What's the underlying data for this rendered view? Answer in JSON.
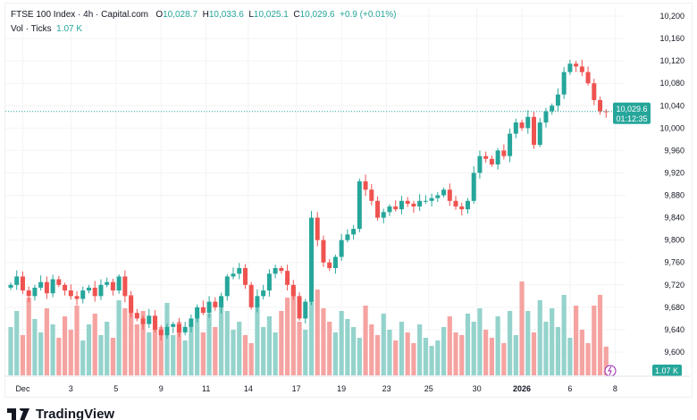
{
  "header": {
    "symbol": "FTSE 100 Index · 4h · Capital.com",
    "o_label": "O",
    "o": "10,028.7",
    "h_label": "H",
    "h": "10,033.6",
    "l_label": "L",
    "l": "10,025.1",
    "c_label": "C",
    "c": "10,029.6",
    "change": "+0.9 (+0.01%)",
    "vol_label": "Vol · Ticks",
    "vol": "1.07 K"
  },
  "price_tag": {
    "price": "10,029.6",
    "countdown": "01:12:35"
  },
  "volume_tag": "1.07 K",
  "brand": "TradingView",
  "colors": {
    "up": "#26a69a",
    "down": "#ef5350",
    "up_vol": "#94d3cc",
    "down_vol": "#f5a3a1"
  },
  "chart_data": {
    "type": "candlestick",
    "ylim": [
      9580,
      10220
    ],
    "y_ticks": [
      "10,200",
      "10,160",
      "10,120",
      "10,080",
      "10,040",
      "10,000",
      "9,960",
      "9,920",
      "9,880",
      "9,840",
      "9,800",
      "9,760",
      "9,720",
      "9,680",
      "9,640",
      "9,600"
    ],
    "y_tick_values": [
      10200,
      10160,
      10120,
      10080,
      10040,
      10000,
      9960,
      9920,
      9880,
      9840,
      9800,
      9760,
      9720,
      9680,
      9640,
      9600
    ],
    "x_ticks": [
      {
        "label": "Dec",
        "index": 2
      },
      {
        "label": "3",
        "index": 10
      },
      {
        "label": "5",
        "index": 17.5
      },
      {
        "label": "9",
        "index": 25
      },
      {
        "label": "11",
        "index": 32.5
      },
      {
        "label": "14",
        "index": 39.5
      },
      {
        "label": "17",
        "index": 47.5
      },
      {
        "label": "19",
        "index": 55
      },
      {
        "label": "23",
        "index": 62.5
      },
      {
        "label": "25",
        "index": 69.5
      },
      {
        "label": "30",
        "index": 77.5
      },
      {
        "label": "2026",
        "index": 85,
        "bold": true
      },
      {
        "label": "6",
        "index": 93
      },
      {
        "label": "8",
        "index": 100.5
      }
    ],
    "closes": [
      9720,
      9735,
      9710,
      9700,
      9715,
      9725,
      9705,
      9730,
      9720,
      9710,
      9700,
      9695,
      9710,
      9715,
      9700,
      9720,
      9725,
      9710,
      9735,
      9700,
      9670,
      9660,
      9650,
      9665,
      9640,
      9630,
      9645,
      9650,
      9635,
      9645,
      9660,
      9680,
      9670,
      9690,
      9680,
      9700,
      9735,
      9740,
      9750,
      9720,
      9680,
      9700,
      9710,
      9740,
      9750,
      9745,
      9720,
      9700,
      9660,
      9690,
      9840,
      9800,
      9760,
      9750,
      9770,
      9800,
      9810,
      9820,
      9905,
      9890,
      9870,
      9840,
      9850,
      9860,
      9855,
      9870,
      9865,
      9860,
      9870,
      9870,
      9875,
      9880,
      9890,
      9870,
      9860,
      9855,
      9870,
      9920,
      9950,
      9945,
      9935,
      9960,
      9950,
      9990,
      10010,
      10000,
      10020,
      9970,
      10010,
      10030,
      10040,
      10060,
      10100,
      10115,
      10110,
      10100,
      10080,
      10050,
      10030,
      10029.6
    ],
    "volumes_k": [
      1.8,
      2.4,
      1.5,
      2.9,
      2.1,
      1.6,
      2.5,
      1.9,
      1.4,
      2.2,
      1.7,
      2.6,
      1.3,
      1.9,
      2.3,
      1.5,
      2.0,
      1.4,
      2.8,
      2.5,
      3.0,
      1.9,
      2.4,
      1.6,
      2.2,
      1.8,
      2.7,
      1.5,
      2.0,
      1.3,
      1.9,
      2.5,
      1.6,
      2.3,
      1.8,
      2.9,
      2.4,
      1.7,
      2.0,
      1.5,
      1.2,
      2.6,
      1.8,
      2.2,
      1.6,
      2.4,
      2.9,
      3.3,
      2.0,
      1.7,
      2.8,
      3.2,
      2.5,
      2.0,
      1.6,
      2.4,
      2.1,
      1.8,
      1.4,
      2.6,
      1.9,
      1.5,
      2.3,
      1.7,
      1.3,
      2.0,
      1.6,
      1.2,
      1.9,
      1.4,
      1.1,
      1.3,
      1.8,
      2.2,
      1.6,
      1.5,
      2.3,
      2.0,
      2.5,
      1.7,
      1.4,
      2.2,
      1.2,
      2.4,
      1.5,
      3.5,
      2.4,
      1.6,
      2.8,
      2.0,
      2.5,
      1.8,
      3.0,
      1.4,
      2.6,
      1.7,
      1.2,
      2.6,
      3.0,
      1.07
    ]
  }
}
